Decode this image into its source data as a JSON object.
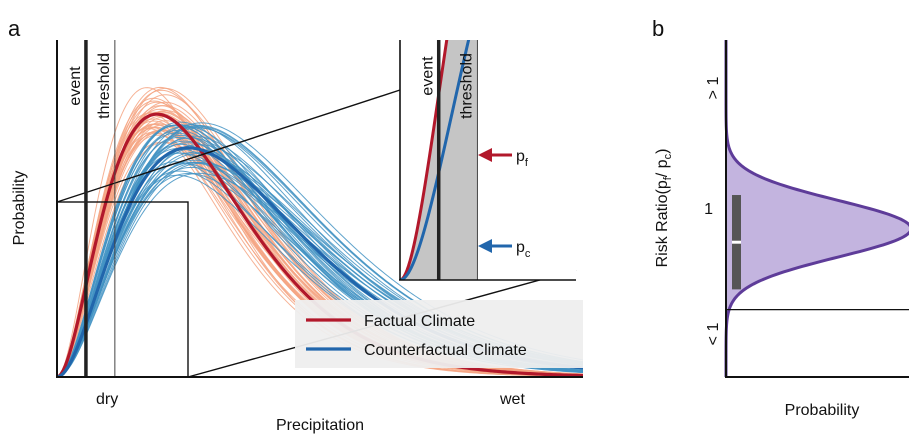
{
  "panel_a": {
    "label": "a",
    "vline_event": "event",
    "vline_threshold": "threshold",
    "inset_event": "event",
    "inset_threshold": "threshold",
    "pf_label": "p",
    "pf_sub": "f",
    "pc_label": "p",
    "pc_sub": "c",
    "legend": {
      "factual": "Factual Climate",
      "counterfactual": "Counterfactual Climate"
    },
    "colors": {
      "factual": "#b2182b",
      "factual_ensemble": "#f4a582",
      "counterfactual": "#2166ac",
      "counterfactual_ensemble": "#4393c3",
      "inset_shade": "#9e9e9e",
      "legend_bg": "#eeeeee"
    }
  },
  "panel_b": {
    "label": "b",
    "ylabel_prefix": "Risk Ratio(p",
    "ylabel_sub_f": "f",
    "ylabel_slash": "/ p",
    "ylabel_sub_c": "c",
    "ylabel_suffix": ")",
    "colors": {
      "line": "#5e3c99",
      "fill": "#b8a7d9",
      "box": "#555555"
    }
  },
  "chart_data": [
    {
      "type": "line",
      "xlabel": "Precipitation",
      "ylabel": "Probability",
      "x_ticks": [
        "dry",
        "wet"
      ],
      "xlim": [
        0,
        10
      ],
      "ylim": [
        0,
        1
      ],
      "event_x": 0.55,
      "threshold_x": 1.1,
      "series": [
        {
          "name": "Factual Climate",
          "shape": 3.0,
          "scale": 0.95,
          "ensemble_members": 40
        },
        {
          "name": "Counterfactual Climate",
          "shape": 3.0,
          "scale": 1.25,
          "ensemble_members": 40
        }
      ],
      "inset": {
        "xlim": [
          0,
          2.5
        ],
        "ylim": [
          0,
          0.35
        ],
        "labels": [
          "event",
          "threshold",
          "pf",
          "pc"
        ]
      }
    },
    {
      "type": "area",
      "xlabel": "Probability",
      "ylabel": "Risk Ratio(pf/pc)",
      "y_ticks": [
        "> 1",
        "1",
        "< 1"
      ],
      "ylim": [
        0.5,
        3.0
      ],
      "reference_line": 1,
      "distribution": {
        "mode": 1.6,
        "sd": 0.21
      },
      "interquartile": [
        1.15,
        1.85
      ],
      "median": 1.5
    }
  ]
}
